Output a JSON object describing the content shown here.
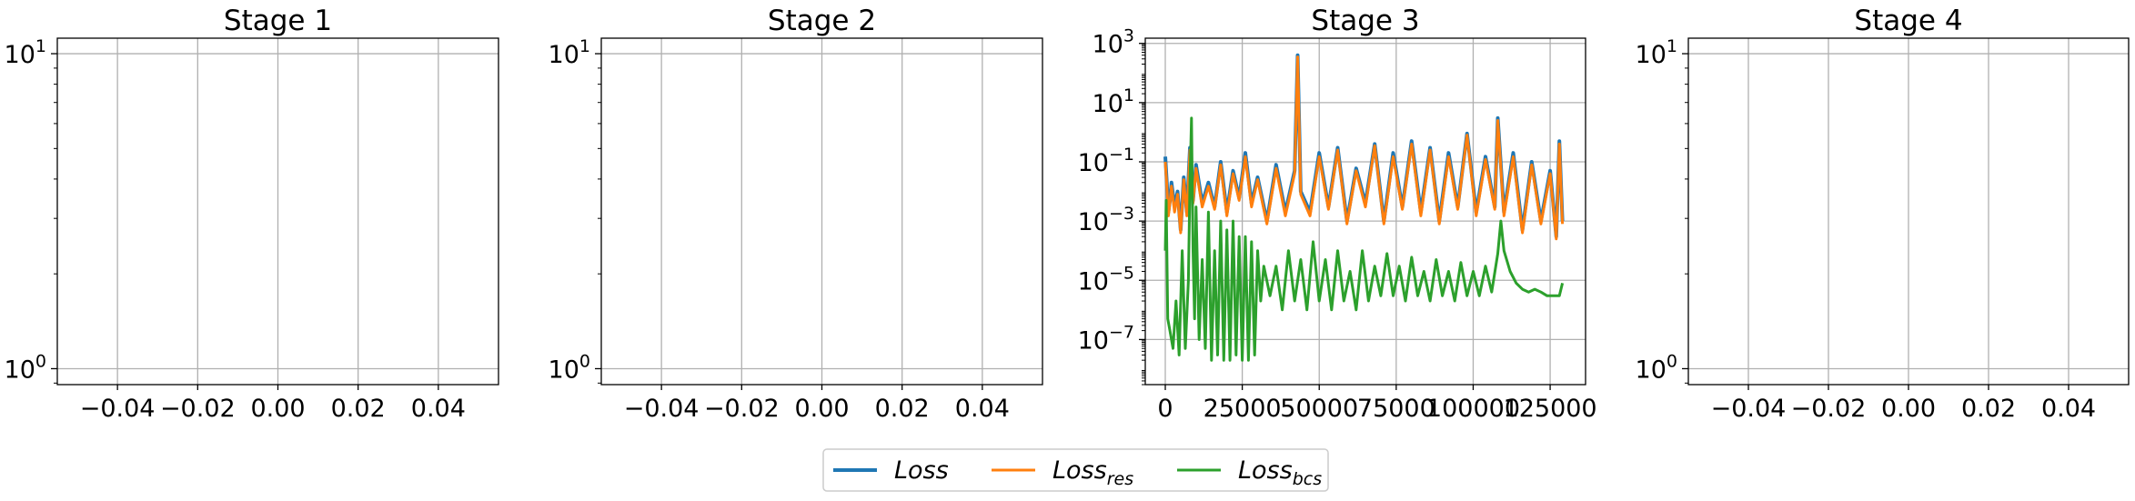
{
  "colors": {
    "loss": "#1f77b4",
    "loss_res": "#ff7f0e",
    "loss_bcs": "#2ca02c",
    "grid": "#b0b0b0",
    "frame": "#000000"
  },
  "legend": {
    "items": [
      {
        "base": "Loss",
        "sub": "",
        "color_key": "loss"
      },
      {
        "base": "Loss",
        "sub": "res",
        "color_key": "loss_res"
      },
      {
        "base": "Loss",
        "sub": "bcs",
        "color_key": "loss_bcs"
      }
    ]
  },
  "chart_data": [
    {
      "type": "line",
      "title": "Stage 1",
      "xlabel": "",
      "ylabel": "",
      "yscale": "log",
      "xlim": [
        -0.055,
        0.055
      ],
      "ylim": [
        0.89,
        11.2
      ],
      "xticks": [
        -0.04,
        -0.02,
        0.0,
        0.02,
        0.04
      ],
      "xtick_labels": [
        "−0.04",
        "−0.02",
        "0.00",
        "0.02",
        "0.04"
      ],
      "yticks": [
        1,
        10
      ],
      "ytick_labels": [
        {
          "base": "10",
          "exp": "0"
        },
        {
          "base": "10",
          "exp": "1"
        }
      ],
      "grid": true,
      "series": []
    },
    {
      "type": "line",
      "title": "Stage 2",
      "xlabel": "",
      "ylabel": "",
      "yscale": "log",
      "xlim": [
        -0.055,
        0.055
      ],
      "ylim": [
        0.89,
        11.2
      ],
      "xticks": [
        -0.04,
        -0.02,
        0.0,
        0.02,
        0.04
      ],
      "xtick_labels": [
        "−0.04",
        "−0.02",
        "0.00",
        "0.02",
        "0.04"
      ],
      "yticks": [
        1,
        10
      ],
      "ytick_labels": [
        {
          "base": "10",
          "exp": "0"
        },
        {
          "base": "10",
          "exp": "1"
        }
      ],
      "grid": true,
      "series": []
    },
    {
      "type": "line",
      "title": "Stage 3",
      "xlabel": "",
      "ylabel": "",
      "yscale": "log",
      "xlim": [
        -6500,
        136500
      ],
      "ylim": [
        3e-09,
        1500
      ],
      "xticks": [
        0,
        25000,
        50000,
        75000,
        100000,
        125000
      ],
      "xtick_labels": [
        "0",
        "25000",
        "50000",
        "75000",
        "100000",
        "125000"
      ],
      "yticks": [
        1e-07,
        1e-05,
        0.001,
        0.1,
        10,
        1000
      ],
      "ytick_labels": [
        {
          "base": "10",
          "exp": "−7"
        },
        {
          "base": "10",
          "exp": "−5"
        },
        {
          "base": "10",
          "exp": "−3"
        },
        {
          "base": "10",
          "exp": "−1"
        },
        {
          "base": "10",
          "exp": "1"
        },
        {
          "base": "10",
          "exp": "3"
        }
      ],
      "grid": true,
      "series": [
        {
          "key": "loss",
          "x": [
            0,
            500,
            1000,
            1500,
            2000,
            3000,
            4000,
            5000,
            6000,
            7000,
            8000,
            9000,
            10000,
            12000,
            14000,
            16000,
            18000,
            20000,
            22000,
            24000,
            26000,
            28000,
            30000,
            33000,
            36000,
            39000,
            42000,
            43000,
            44000,
            47000,
            50000,
            53000,
            56000,
            59000,
            62000,
            65000,
            68000,
            71000,
            74000,
            77000,
            80000,
            83000,
            86000,
            89000,
            92000,
            95000,
            98000,
            101000,
            104000,
            107000,
            108000,
            110000,
            113000,
            116000,
            119000,
            122000,
            125000,
            127000,
            128000,
            129000
          ],
          "y": [
            0.15,
            0.02,
            0.002,
            0.005,
            0.02,
            0.003,
            0.01,
            0.0005,
            0.03,
            0.002,
            0.3,
            0.005,
            0.08,
            0.004,
            0.02,
            0.003,
            0.1,
            0.002,
            0.05,
            0.006,
            0.2,
            0.004,
            0.03,
            0.001,
            0.08,
            0.002,
            0.05,
            400,
            0.01,
            0.002,
            0.2,
            0.003,
            0.3,
            0.001,
            0.06,
            0.004,
            0.4,
            0.001,
            0.2,
            0.003,
            0.5,
            0.002,
            0.3,
            0.001,
            0.2,
            0.003,
            0.9,
            0.002,
            0.15,
            0.003,
            3,
            0.002,
            0.2,
            0.0005,
            0.1,
            0.001,
            0.05,
            0.0003,
            0.5,
            0.001
          ]
        },
        {
          "key": "loss_res",
          "x": [
            0,
            500,
            1000,
            1500,
            2000,
            3000,
            4000,
            5000,
            6000,
            7000,
            8000,
            9000,
            10000,
            12000,
            14000,
            16000,
            18000,
            20000,
            22000,
            24000,
            26000,
            28000,
            30000,
            33000,
            36000,
            39000,
            42000,
            43000,
            44000,
            47000,
            50000,
            53000,
            56000,
            59000,
            62000,
            65000,
            68000,
            71000,
            74000,
            77000,
            80000,
            83000,
            86000,
            89000,
            92000,
            95000,
            98000,
            101000,
            104000,
            107000,
            108000,
            110000,
            113000,
            116000,
            119000,
            122000,
            125000,
            127000,
            128000,
            129000
          ],
          "y": [
            0.1,
            0.015,
            0.0015,
            0.004,
            0.015,
            0.002,
            0.008,
            0.0004,
            0.025,
            0.0015,
            0.25,
            0.004,
            0.06,
            0.003,
            0.015,
            0.0025,
            0.08,
            0.0015,
            0.04,
            0.005,
            0.15,
            0.003,
            0.025,
            0.0008,
            0.06,
            0.0015,
            0.04,
            350,
            0.008,
            0.0015,
            0.15,
            0.0025,
            0.25,
            0.0008,
            0.05,
            0.003,
            0.35,
            0.0008,
            0.15,
            0.0025,
            0.4,
            0.0015,
            0.25,
            0.0008,
            0.15,
            0.0025,
            0.8,
            0.0015,
            0.12,
            0.0025,
            2.5,
            0.0015,
            0.15,
            0.0004,
            0.08,
            0.0008,
            0.04,
            0.00025,
            0.4,
            0.0008
          ]
        },
        {
          "key": "loss_bcs",
          "x": [
            0,
            300,
            800,
            1500,
            2500,
            3500,
            4500,
            5500,
            6500,
            7500,
            8000,
            8500,
            9000,
            9500,
            10000,
            11000,
            12000,
            13000,
            14000,
            15000,
            16000,
            17000,
            18000,
            19000,
            20000,
            21000,
            22000,
            23000,
            24000,
            25000,
            26000,
            27000,
            28000,
            29000,
            30000,
            31000,
            32000,
            34000,
            36000,
            38000,
            40000,
            42000,
            44000,
            46000,
            48000,
            50000,
            52000,
            54000,
            56000,
            58000,
            60000,
            62000,
            64000,
            66000,
            68000,
            70000,
            72000,
            74000,
            76000,
            78000,
            80000,
            82000,
            84000,
            86000,
            88000,
            90000,
            92000,
            94000,
            96000,
            98000,
            100000,
            102000,
            104000,
            106000,
            108000,
            109000,
            110000,
            112000,
            114000,
            116000,
            118000,
            120000,
            122000,
            124000,
            126000,
            128000,
            129000
          ],
          "y": [
            0.0001,
            0.005,
            5e-07,
            2e-07,
            5e-08,
            2e-06,
            3e-08,
            0.0001,
            5e-08,
            1e-05,
            0.02,
            3,
            0.0001,
            5e-07,
            0.003,
            1e-07,
            5e-05,
            5e-08,
            0.002,
            2e-08,
            0.0001,
            3e-08,
            0.001,
            2e-08,
            0.0005,
            2e-08,
            0.001,
            3e-08,
            0.0003,
            2e-08,
            0.0003,
            2e-08,
            0.0002,
            3e-08,
            0.0001,
            2e-06,
            3e-05,
            3e-06,
            3e-05,
            1e-06,
            0.0001,
            2e-06,
            5e-05,
            1e-06,
            0.0002,
            2e-06,
            5e-05,
            1e-06,
            0.0001,
            2e-06,
            2e-05,
            1e-06,
            0.0001,
            2e-06,
            3e-05,
            3e-06,
            8e-05,
            3e-06,
            3e-05,
            2e-06,
            6e-05,
            3e-06,
            2e-05,
            2e-06,
            5e-05,
            3e-06,
            2e-05,
            2e-06,
            4e-05,
            3e-06,
            2e-05,
            3e-06,
            3e-05,
            4e-06,
            8e-05,
            0.001,
            0.0001,
            2e-05,
            8e-06,
            5e-06,
            4e-06,
            5e-06,
            4e-06,
            3e-06,
            3e-06,
            3e-06,
            8e-06
          ]
        }
      ]
    },
    {
      "type": "line",
      "title": "Stage 4",
      "xlabel": "",
      "ylabel": "",
      "yscale": "log",
      "xlim": [
        -0.055,
        0.055
      ],
      "ylim": [
        0.89,
        11.2
      ],
      "xticks": [
        -0.04,
        -0.02,
        0.0,
        0.02,
        0.04
      ],
      "xtick_labels": [
        "−0.04",
        "−0.02",
        "0.00",
        "0.02",
        "0.04"
      ],
      "yticks": [
        1,
        10
      ],
      "ytick_labels": [
        {
          "base": "10",
          "exp": "0"
        },
        {
          "base": "10",
          "exp": "1"
        }
      ],
      "grid": true,
      "series": []
    }
  ]
}
